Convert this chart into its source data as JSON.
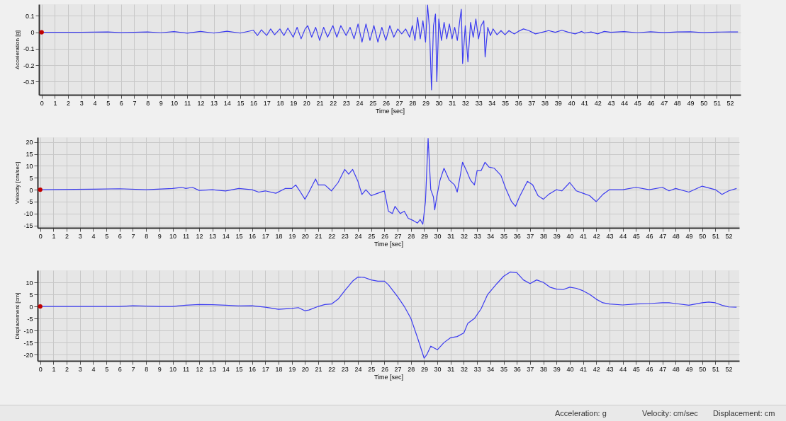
{
  "chart_data": [
    {
      "type": "line",
      "xlabel": "Time [sec]",
      "ylabel": "Acceleration [g]",
      "xlim": [
        -0.2,
        52.8
      ],
      "ylim": [
        -0.38,
        0.17
      ],
      "xticks": [
        0,
        1,
        2,
        3,
        4,
        5,
        6,
        7,
        8,
        9,
        10,
        11,
        12,
        13,
        14,
        15,
        16,
        17,
        18,
        19,
        20,
        21,
        22,
        23,
        24,
        25,
        26,
        27,
        28,
        29,
        30,
        31,
        32,
        33,
        34,
        35,
        36,
        37,
        38,
        39,
        40,
        41,
        42,
        43,
        44,
        45,
        46,
        47,
        48,
        49,
        50,
        51,
        52
      ],
      "yticks": [
        0.1,
        0,
        -0.1,
        -0.2,
        -0.3
      ],
      "grid": true,
      "series": [
        {
          "type": "line",
          "color": "#3c3cf0",
          "x": [
            0,
            3,
            5,
            6,
            8,
            9,
            10,
            11,
            12,
            13,
            14,
            15,
            16,
            16.3,
            16.6,
            17,
            17.3,
            17.6,
            18,
            18.3,
            18.6,
            19,
            19.3,
            19.6,
            19.9,
            20.1,
            20.4,
            20.7,
            21,
            21.3,
            21.6,
            22,
            22.3,
            22.6,
            23,
            23.3,
            23.6,
            23.9,
            24.2,
            24.5,
            24.8,
            25.1,
            25.4,
            25.7,
            26,
            26.3,
            26.6,
            26.9,
            27.2,
            27.5,
            27.8,
            28,
            28.2,
            28.4,
            28.6,
            28.8,
            29,
            29.15,
            29.3,
            29.45,
            29.6,
            29.75,
            29.85,
            30,
            30.2,
            30.4,
            30.6,
            30.8,
            31,
            31.2,
            31.4,
            31.6,
            31.7,
            31.8,
            32,
            32.2,
            32.4,
            32.6,
            32.8,
            33,
            33.2,
            33.4,
            33.5,
            33.7,
            33.9,
            34.1,
            34.4,
            34.7,
            35,
            35.3,
            35.7,
            36,
            36.4,
            36.8,
            37.3,
            37.8,
            38.3,
            38.8,
            39.3,
            39.8,
            40.3,
            40.8,
            41,
            41.5,
            42,
            42.5,
            43,
            44,
            45,
            46,
            47,
            48,
            49,
            50,
            51,
            52,
            52.6
          ],
          "values": [
            0,
            0,
            0.002,
            -0.002,
            0.002,
            -0.003,
            0.004,
            -0.006,
            0.005,
            -0.005,
            0.006,
            -0.005,
            0.012,
            -0.02,
            0.015,
            -0.02,
            0.02,
            -0.015,
            0.02,
            -0.02,
            0.025,
            -0.03,
            0.03,
            -0.04,
            0.02,
            0.04,
            -0.03,
            0.03,
            -0.05,
            0.03,
            -0.03,
            0.04,
            -0.03,
            0.04,
            -0.02,
            0.03,
            -0.04,
            0.05,
            -0.06,
            0.05,
            -0.05,
            0.04,
            -0.06,
            0.03,
            -0.05,
            0.04,
            -0.03,
            0.02,
            -0.01,
            0.02,
            -0.03,
            0.04,
            -0.05,
            0.09,
            -0.04,
            0.07,
            -0.06,
            0.165,
            0.02,
            -0.35,
            0.04,
            0.11,
            -0.3,
            0.08,
            -0.05,
            0.06,
            -0.04,
            0.05,
            -0.04,
            0.03,
            -0.05,
            0.08,
            0.14,
            -0.19,
            0.04,
            -0.18,
            0.06,
            -0.03,
            0.08,
            -0.04,
            0.04,
            0.07,
            -0.15,
            0.03,
            -0.02,
            0.02,
            -0.015,
            0.01,
            -0.015,
            0.01,
            -0.01,
            0.005,
            0.02,
            0.01,
            -0.01,
            0,
            0.01,
            0,
            0.012,
            0,
            -0.01,
            0.005,
            -0.005,
            0.002,
            -0.01,
            0.005,
            0,
            0.004,
            -0.003,
            0.003,
            -0.002,
            0.002,
            0.003,
            -0.002,
            0.001,
            0.002,
            0.002
          ]
        },
        {
          "type": "scatter",
          "color": "#c00000",
          "x": [
            0
          ],
          "values": [
            0
          ]
        }
      ]
    },
    {
      "type": "line",
      "xlabel": "Time [sec]",
      "ylabel": "Velocity [cm/sec]",
      "xlim": [
        -0.2,
        52.8
      ],
      "ylim": [
        -16,
        22
      ],
      "xticks": [
        0,
        1,
        2,
        3,
        4,
        5,
        6,
        7,
        8,
        9,
        10,
        11,
        12,
        13,
        14,
        15,
        16,
        17,
        18,
        19,
        20,
        21,
        22,
        23,
        24,
        25,
        26,
        27,
        28,
        29,
        30,
        31,
        32,
        33,
        34,
        35,
        36,
        37,
        38,
        39,
        40,
        41,
        42,
        43,
        44,
        45,
        46,
        47,
        48,
        49,
        50,
        51,
        52
      ],
      "yticks": [
        20,
        15,
        10,
        5,
        0,
        -5,
        -10,
        -15
      ],
      "grid": true,
      "series": [
        {
          "type": "line",
          "color": "#3c3cf0",
          "x": [
            0,
            4,
            6,
            8,
            10,
            10.7,
            11,
            11.5,
            12,
            13,
            14,
            15,
            16,
            16.5,
            17,
            17.8,
            18.5,
            19,
            19.3,
            19.6,
            20,
            20.3,
            20.8,
            21,
            21.5,
            22,
            22.5,
            23,
            23.3,
            23.6,
            24,
            24.3,
            24.6,
            25,
            25.5,
            26,
            26.3,
            26.6,
            26.8,
            27.2,
            27.5,
            27.8,
            28.2,
            28.5,
            28.7,
            28.9,
            29.1,
            29.3,
            29.5,
            29.7,
            29.8,
            29.95,
            30.2,
            30.5,
            30.9,
            31.3,
            31.5,
            31.7,
            31.9,
            32.2,
            32.5,
            32.8,
            33,
            33.3,
            33.6,
            33.9,
            34.3,
            34.8,
            35.2,
            35.6,
            35.9,
            36.2,
            36.8,
            37.2,
            37.6,
            38,
            38.4,
            39,
            39.4,
            40,
            40.5,
            41,
            41.5,
            42,
            42.5,
            43,
            44,
            45,
            46,
            47,
            47.5,
            48,
            49,
            50,
            51,
            51.5,
            52,
            52.6
          ],
          "values": [
            0,
            0.2,
            0.4,
            0,
            0.5,
            1,
            0.5,
            1,
            -0.3,
            0,
            -0.5,
            0.5,
            0,
            -1,
            -0.5,
            -1.5,
            0.5,
            0.5,
            2,
            -0.5,
            -4,
            -1,
            4.5,
            2,
            2,
            -0.5,
            3,
            8.5,
            6.5,
            8.5,
            3.5,
            -2,
            0,
            -2.5,
            -1.5,
            -0.5,
            -9,
            -10,
            -7,
            -10,
            -9,
            -12,
            -13,
            -14,
            -12.5,
            -14.5,
            -5,
            21.5,
            0,
            -3,
            -8.5,
            -3,
            4,
            9,
            4,
            2,
            -1,
            5,
            11.5,
            8,
            4,
            2,
            8,
            8,
            11.5,
            9.5,
            9,
            6,
            0,
            -5,
            -7,
            -3,
            3.5,
            2,
            -2.5,
            -4,
            -2,
            0,
            -0.5,
            3,
            -0.5,
            -1.5,
            -2.5,
            -5,
            -2,
            0,
            0,
            1,
            0,
            1,
            -0.5,
            0.5,
            -1,
            1.5,
            0,
            -2,
            -0.5,
            0.5
          ]
        },
        {
          "type": "scatter",
          "color": "#c00000",
          "x": [
            0
          ],
          "values": [
            0
          ]
        }
      ]
    },
    {
      "type": "line",
      "xlabel": "Time [sec]",
      "ylabel": "Displacement [cm]",
      "xlim": [
        -0.2,
        52.8
      ],
      "ylim": [
        -22.6,
        15
      ],
      "xticks": [
        0,
        1,
        2,
        3,
        4,
        5,
        6,
        7,
        8,
        9,
        10,
        11,
        12,
        13,
        14,
        15,
        16,
        17,
        18,
        19,
        20,
        21,
        22,
        23,
        24,
        25,
        26,
        27,
        28,
        29,
        30,
        31,
        32,
        33,
        34,
        35,
        36,
        37,
        38,
        39,
        40,
        41,
        42,
        43,
        44,
        45,
        46,
        47,
        48,
        49,
        50,
        51,
        52
      ],
      "yticks": [
        10,
        5,
        0,
        -5,
        -10,
        -15,
        -20
      ],
      "grid": true,
      "series": [
        {
          "type": "line",
          "color": "#3c3cf0",
          "x": [
            0,
            6,
            7,
            9,
            10,
            11,
            12,
            13,
            14,
            15,
            16,
            17,
            18,
            19,
            19.5,
            20,
            20.3,
            21,
            21.5,
            22,
            22.5,
            23,
            23.6,
            24,
            24.5,
            25,
            25.5,
            26,
            26.3,
            27,
            27.5,
            28,
            28.5,
            29,
            29.2,
            29.5,
            30,
            30.5,
            31,
            31.5,
            32,
            32.3,
            32.8,
            33.3,
            33.8,
            34.5,
            35,
            35.5,
            36,
            36.5,
            37,
            37.5,
            38,
            38.5,
            39,
            39.5,
            40,
            40.5,
            41,
            41.5,
            42,
            42.5,
            43,
            44,
            45,
            46,
            47,
            47.5,
            48,
            49,
            50,
            50.5,
            51,
            51.5,
            52,
            52.6
          ],
          "values": [
            0,
            0,
            0.3,
            0,
            0,
            0.5,
            0.8,
            0.7,
            0.5,
            0.2,
            0.3,
            -0.3,
            -1.2,
            -0.8,
            -0.5,
            -1.8,
            -1.5,
            0,
            0.8,
            1,
            3,
            6.5,
            10.5,
            12.2,
            12,
            11,
            10.5,
            10.5,
            9,
            4,
            0,
            -5,
            -13,
            -21.5,
            -20,
            -16.5,
            -18,
            -15,
            -13,
            -12.5,
            -11,
            -7,
            -5,
            -1,
            5,
            9.5,
            12.5,
            14.3,
            14,
            11,
            9.5,
            11,
            10,
            8,
            7.2,
            7,
            8,
            7.5,
            6.5,
            5,
            3,
            1.5,
            1,
            0.6,
            1,
            1.2,
            1.5,
            1.5,
            1.2,
            0.5,
            1.5,
            1.8,
            1.5,
            0.5,
            -0.2,
            -0.3
          ]
        },
        {
          "type": "scatter",
          "color": "#c00000",
          "x": [
            0
          ],
          "values": [
            0
          ]
        }
      ]
    },
    {
      "type": "other",
      "annotations": [
        "Acceleration: g",
        "Velocity: cm/sec",
        "Displacement: cm"
      ]
    }
  ]
}
